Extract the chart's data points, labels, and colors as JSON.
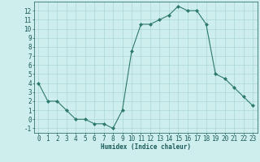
{
  "x": [
    0,
    1,
    2,
    3,
    4,
    5,
    6,
    7,
    8,
    9,
    10,
    11,
    12,
    13,
    14,
    15,
    16,
    17,
    18,
    19,
    20,
    21,
    22,
    23
  ],
  "y": [
    4,
    2,
    2,
    1,
    0,
    0,
    -0.5,
    -0.5,
    -1,
    1,
    7.5,
    10.5,
    10.5,
    11,
    11.5,
    12.5,
    12,
    12,
    10.5,
    5,
    4.5,
    3.5,
    2.5,
    1.5
  ],
  "line_color": "#2d7a6b",
  "marker": "D",
  "marker_size": 2,
  "bg_color": "#ceeeed",
  "grid_color": "#aad6d4",
  "xlabel": "Humidex (Indice chaleur)",
  "xlim": [
    -0.5,
    23.5
  ],
  "ylim": [
    -1.5,
    13
  ],
  "yticks": [
    -1,
    0,
    1,
    2,
    3,
    4,
    5,
    6,
    7,
    8,
    9,
    10,
    11,
    12
  ],
  "xticks": [
    0,
    1,
    2,
    3,
    4,
    5,
    6,
    7,
    8,
    9,
    10,
    11,
    12,
    13,
    14,
    15,
    16,
    17,
    18,
    19,
    20,
    21,
    22,
    23
  ],
  "font_color": "#1a5a5a",
  "label_fontsize": 5.5,
  "tick_fontsize": 5.5
}
